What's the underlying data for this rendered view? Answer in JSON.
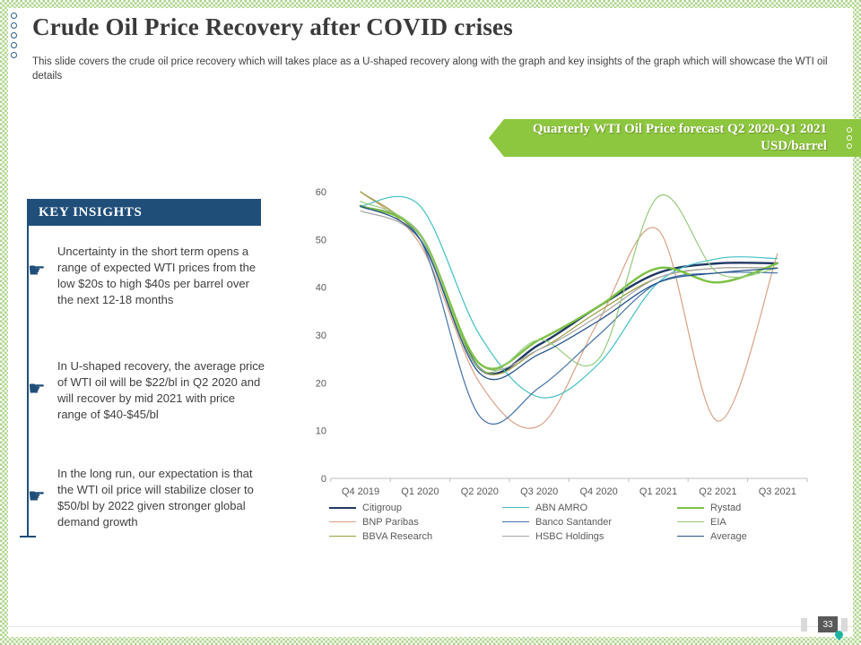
{
  "slide": {
    "title": "Crude Oil Price Recovery after COVID crises",
    "subtitle": "This slide covers the crude oil price recovery which will takes place as a U-shaped recovery along with the graph and key insights of the graph which will showcase the WTI oil details",
    "page_number": "33"
  },
  "banner": {
    "line1": "Quarterly WTI Oil Price forecast Q2 2020-Q1 2021",
    "line2": "USD/barrel",
    "color": "#8DC63F"
  },
  "insights": {
    "header": "KEY INSIGHTS",
    "header_bg": "#1F4E79",
    "bullet_icon": "pointing-hand",
    "items": [
      {
        "text": "Uncertainty in the short term opens a range of expected WTI prices from the low $20s to high $40s per barrel over the next 12-18 months"
      },
      {
        "text": "In U-shaped recovery, the average price of WTI oil will be $22/bl in Q2 2020 and will recover by mid 2021 with price range of $40-$45/bl"
      },
      {
        "text": "In the long run, our expectation is that the WTI oil price will stabilize closer to $50/bl by 2022 given stronger global demand growth"
      }
    ]
  },
  "chart_data": {
    "type": "line",
    "title": "Quarterly WTI Oil Price forecast Q2 2020-Q1 2021 USD/barrel",
    "xlabel": "",
    "ylabel": "",
    "ylim": [
      0,
      60
    ],
    "ytick_step": 10,
    "grid": false,
    "smooth": true,
    "legend_position": "bottom",
    "axis_color": "#BFBFBF",
    "label_color": "#595959",
    "categories": [
      "Q4 2019",
      "Q1 2020",
      "Q2 2020",
      "Q3 2020",
      "Q4 2020",
      "Q1 2021",
      "Q2 2021",
      "Q3 2021"
    ],
    "series": [
      {
        "name": "Citigroup",
        "color": "#1F3864",
        "width": 2.4,
        "values": [
          57,
          51,
          23,
          28,
          36,
          43,
          45,
          45
        ]
      },
      {
        "name": "BNP Paribas",
        "color": "#D9A183",
        "width": 1.2,
        "values": [
          60,
          49,
          20,
          11,
          33,
          52,
          12,
          47
        ]
      },
      {
        "name": "BBVA Research",
        "color": "#9C9B40",
        "width": 1.2,
        "values": [
          60,
          50,
          23,
          27,
          35,
          42,
          44,
          44
        ]
      },
      {
        "name": "ABN AMRO",
        "color": "#3FBFC5",
        "width": 1.2,
        "values": [
          57,
          57,
          30,
          17,
          24,
          41,
          46,
          46
        ]
      },
      {
        "name": "Banco Santander",
        "color": "#4472A8",
        "width": 1.2,
        "values": [
          57,
          50,
          13,
          19,
          30,
          41,
          43,
          43
        ]
      },
      {
        "name": "HSBC Holdings",
        "color": "#A6A6A6",
        "width": 1.2,
        "values": [
          56,
          50,
          24,
          27,
          34,
          42,
          44,
          44
        ]
      },
      {
        "name": "Rystad",
        "color": "#7CC143",
        "width": 2.4,
        "values": [
          57,
          51,
          24,
          29,
          36,
          44,
          41,
          45
        ]
      },
      {
        "name": "EIA",
        "color": "#95CB7C",
        "width": 1.2,
        "values": [
          58,
          51,
          23,
          29,
          25,
          59,
          43,
          44
        ]
      },
      {
        "name": "Average",
        "color": "#26548C",
        "width": 1.3,
        "values": [
          57,
          50,
          22,
          26,
          33,
          41,
          43,
          44
        ]
      }
    ],
    "legend_columns": [
      [
        0,
        1,
        2
      ],
      [
        3,
        4,
        5
      ],
      [
        6,
        7,
        8
      ]
    ]
  }
}
